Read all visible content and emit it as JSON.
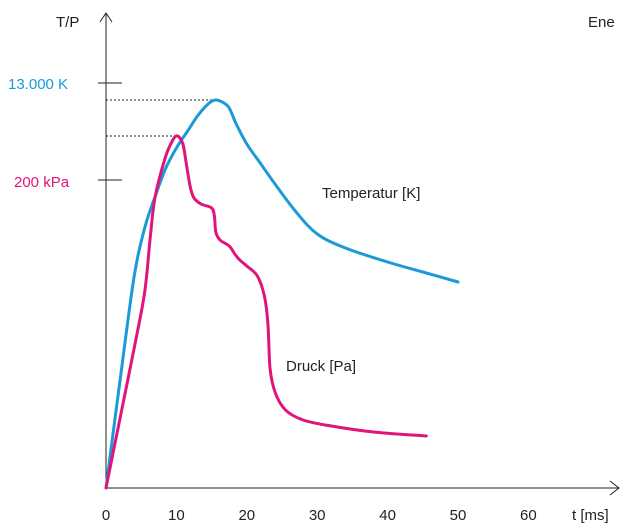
{
  "chart_data": {
    "type": "line",
    "title": "",
    "xlabel": "t [ms]",
    "ylabel": "T/P",
    "corner_label": "Ene",
    "xlim": [
      0,
      70
    ],
    "xticks": [
      0,
      10,
      20,
      30,
      40,
      50,
      60
    ],
    "y_markers": [
      {
        "label": "13.000 K",
        "color": "#1a9bd7"
      },
      {
        "label": "200 kPa",
        "color": "#e0147a"
      }
    ],
    "grid": false,
    "legend": "none",
    "series": [
      {
        "name": "Temperatur [K]",
        "color": "#1a9bd7",
        "x": [
          0,
          2,
          4,
          5.5,
          7,
          8.5,
          10,
          11.5,
          13,
          14.5,
          15.5,
          16.5,
          17.5,
          18.5,
          20,
          22,
          24,
          27,
          30,
          34,
          40,
          45,
          50
        ],
        "y": [
          0,
          0.27,
          0.53,
          0.65,
          0.73,
          0.8,
          0.85,
          0.89,
          0.93,
          0.96,
          0.97,
          0.965,
          0.95,
          0.91,
          0.86,
          0.81,
          0.76,
          0.69,
          0.635,
          0.6,
          0.565,
          0.54,
          0.515
        ]
      },
      {
        "name": "Druck [Pa]",
        "color": "#e0147a",
        "x": [
          0,
          2,
          4,
          5.5,
          6.3,
          7,
          8.5,
          9.5,
          10,
          10.5,
          11,
          11.5,
          12,
          12.5,
          13.5,
          15,
          15.4,
          15.6,
          16.2,
          17.5,
          18.3,
          19,
          20,
          21.5,
          22.5,
          23,
          23.3,
          24,
          25.5,
          28,
          32,
          38,
          45.5
        ],
        "y": [
          0,
          0.175,
          0.35,
          0.49,
          0.63,
          0.73,
          0.83,
          0.87,
          0.88,
          0.875,
          0.855,
          0.8,
          0.75,
          0.725,
          0.71,
          0.7,
          0.68,
          0.64,
          0.62,
          0.605,
          0.585,
          0.57,
          0.555,
          0.53,
          0.48,
          0.41,
          0.3,
          0.24,
          0.195,
          0.17,
          0.155,
          0.14,
          0.13
        ]
      }
    ]
  }
}
